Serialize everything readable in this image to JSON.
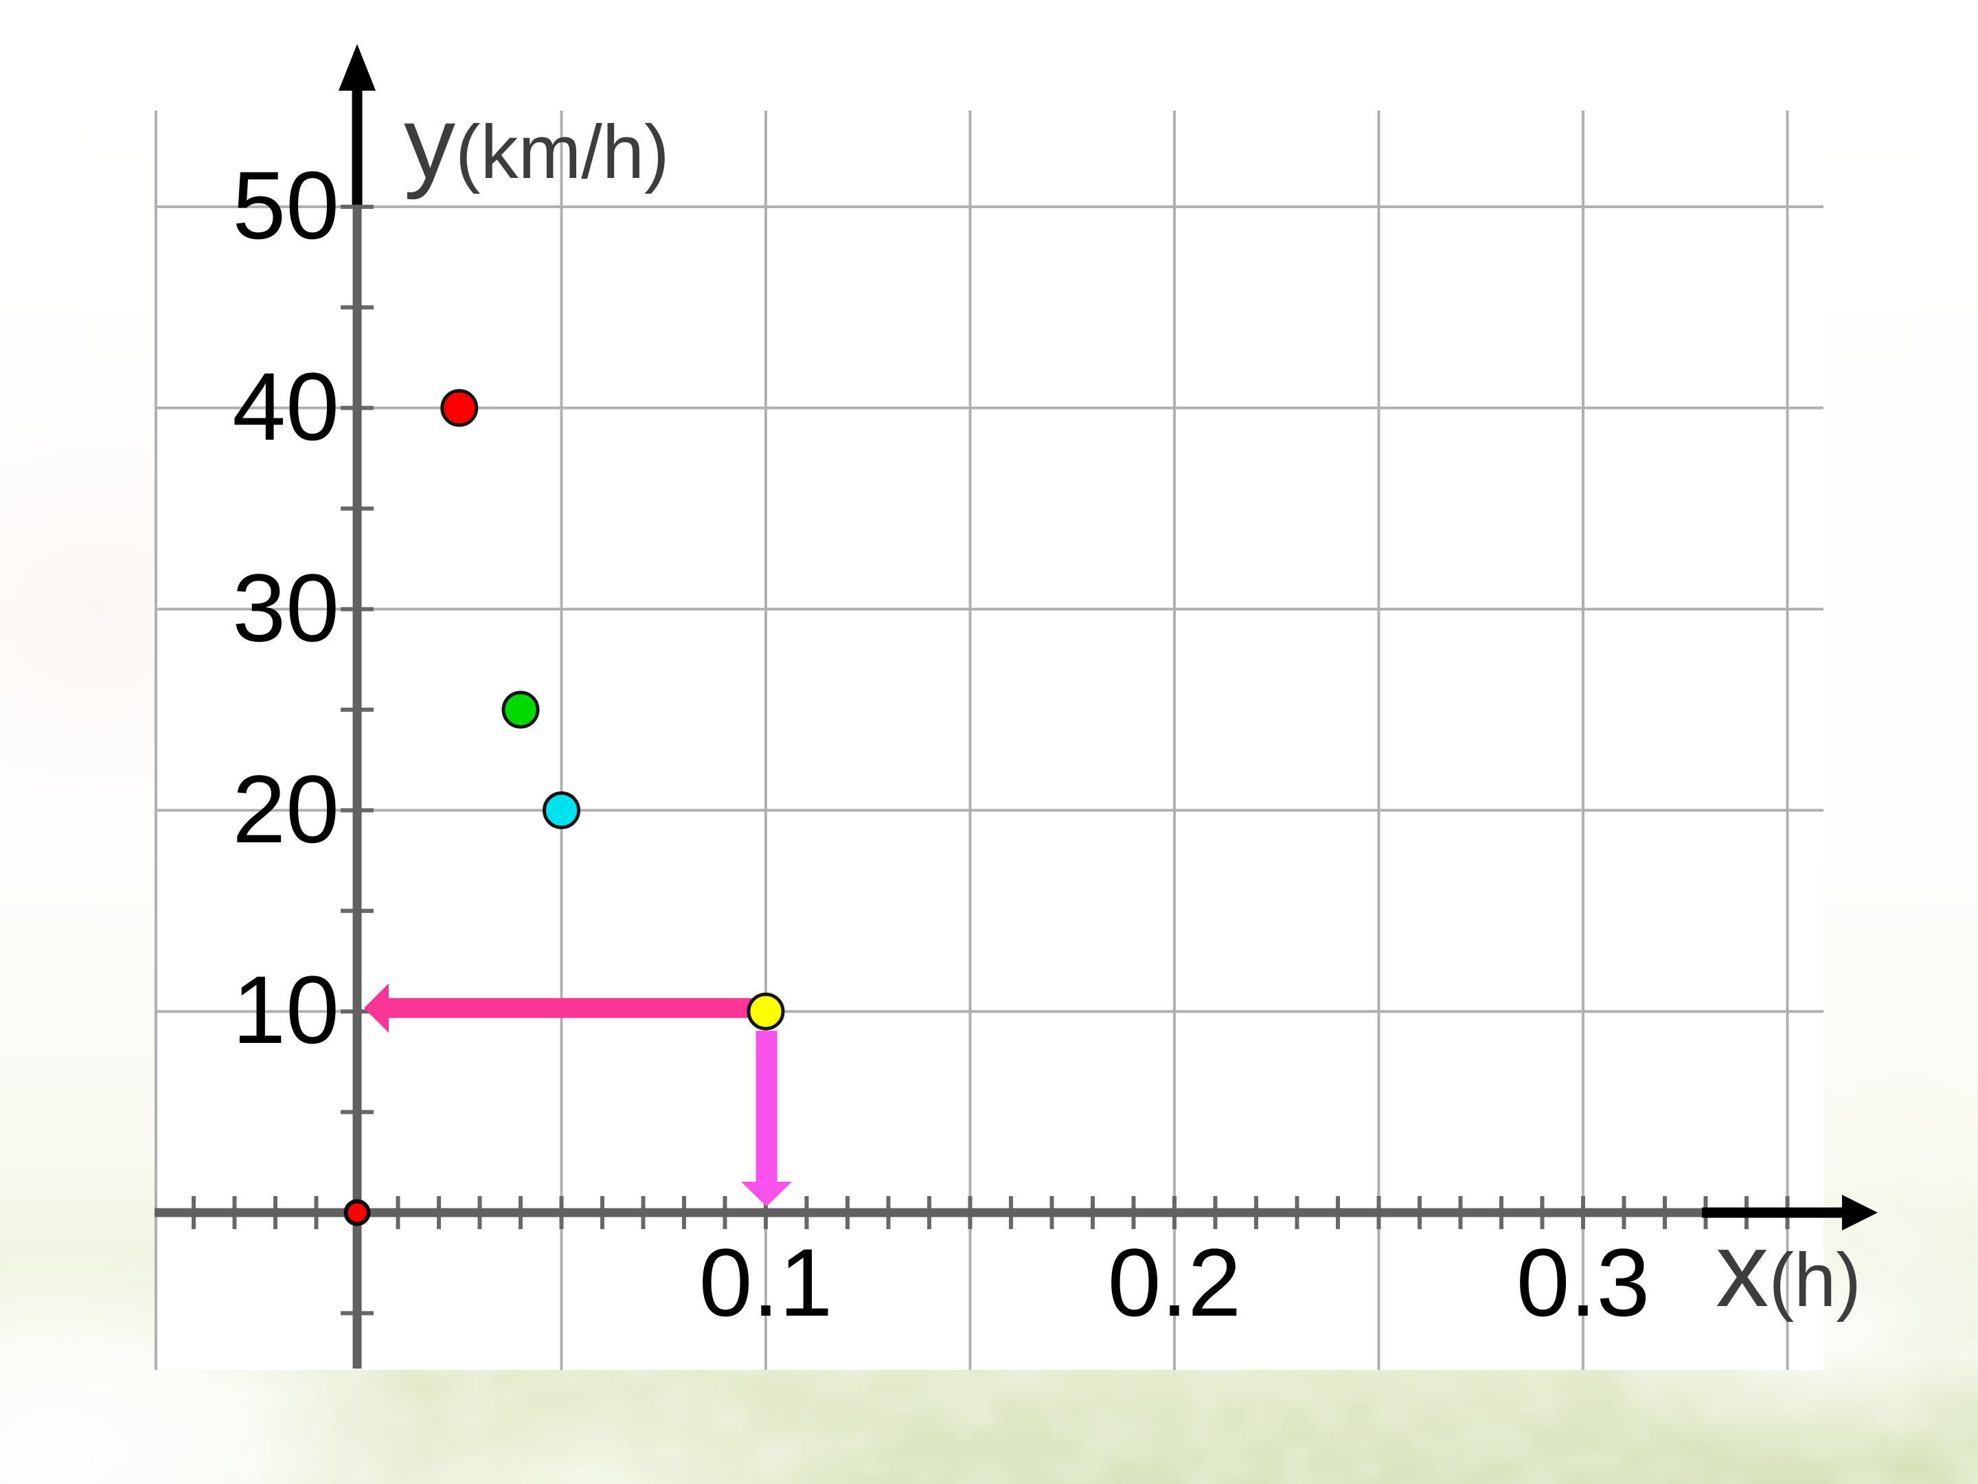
{
  "chart_data": {
    "type": "scatter",
    "title": "",
    "xlabel": "x",
    "xlabel_unit": "(h)",
    "ylabel": "y",
    "ylabel_unit": "(km/h)",
    "xlim": [
      -0.049,
      0.359
    ],
    "ylim": [
      -7.8,
      54.8
    ],
    "x_gridlines": [
      -0.05,
      0.05,
      0.1,
      0.15,
      0.2,
      0.25,
      0.3,
      0.35
    ],
    "y_gridlines": [
      10,
      20,
      30,
      40,
      50
    ],
    "x_tick_step": 0.01,
    "y_tick_step": 5,
    "x_tick_labels": [
      "0.1",
      "0.2",
      "0.3"
    ],
    "x_tick_label_values": [
      0.1,
      0.2,
      0.3
    ],
    "y_tick_labels": [
      "50",
      "40",
      "30",
      "20",
      "10"
    ],
    "y_tick_label_values": [
      50,
      40,
      30,
      20,
      10
    ],
    "grid": true,
    "legend": false,
    "points": [
      {
        "x": 0.025,
        "y": 40,
        "color": "#ff0000",
        "name": "point-red"
      },
      {
        "x": 0.04,
        "y": 25,
        "color": "#00d900",
        "name": "point-green"
      },
      {
        "x": 0.05,
        "y": 20,
        "color": "#00e1ef",
        "name": "point-cyan"
      },
      {
        "x": 0.1,
        "y": 10,
        "color": "#ffff00",
        "name": "point-yellow"
      }
    ],
    "origin_marker": {
      "x": 0,
      "y": 0,
      "color": "#ff0000"
    },
    "annotations": [
      {
        "type": "arrow",
        "from": [
          0.1,
          10
        ],
        "to": [
          0,
          10
        ],
        "color": "#fa3595",
        "name": "arrow-to-y-axis"
      },
      {
        "type": "arrow",
        "from": [
          0.1,
          10
        ],
        "to": [
          0.1,
          0
        ],
        "color": "#f851ec",
        "name": "arrow-to-x-axis"
      }
    ]
  },
  "colors": {
    "gridline": "#b0b0b0",
    "axis": "#616161",
    "tick": "#686868",
    "axis_arrow": "#000000",
    "tick_label": "#000000",
    "axis_title": "#3d3d3d",
    "plot_background": "#ffffff",
    "slide_bottom": "#d9e4bf"
  }
}
